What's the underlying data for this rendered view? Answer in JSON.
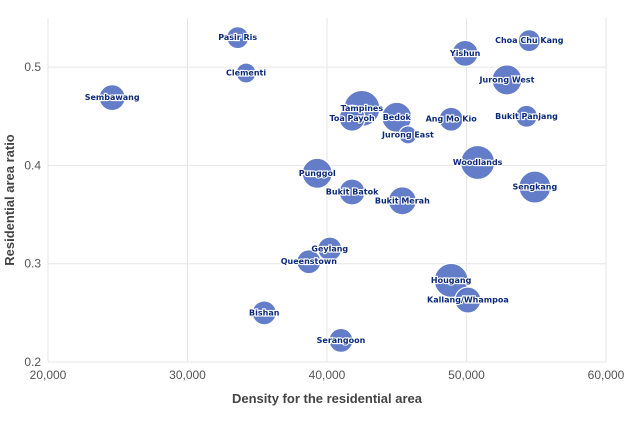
{
  "chart_data": {
    "type": "scatter",
    "xlabel": "Density for the residential area",
    "ylabel": "Residential area ratio",
    "xlim": [
      20000,
      60000
    ],
    "ylim": [
      0.2,
      0.55
    ],
    "grid": true,
    "x_ticks": [
      "20,000",
      "30,000",
      "40,000",
      "50,000",
      "60,000"
    ],
    "x_tick_values": [
      20000,
      30000,
      40000,
      50000,
      60000
    ],
    "y_ticks": [
      "0.2",
      "0.3",
      "0.4",
      "0.5"
    ],
    "y_tick_values": [
      0.2,
      0.3,
      0.4,
      0.5
    ],
    "color": "#5b76c6",
    "label_color": "#0b2a7a",
    "points": [
      {
        "label": "Pasir Ris",
        "x": 33600,
        "y": 0.53,
        "size": 11
      },
      {
        "label": "Clementi",
        "x": 34200,
        "y": 0.494,
        "size": 10
      },
      {
        "label": "Sembawang",
        "x": 24600,
        "y": 0.469,
        "size": 13
      },
      {
        "label": "Yishun",
        "x": 49900,
        "y": 0.514,
        "size": 13
      },
      {
        "label": "Choa Chu Kang",
        "x": 54500,
        "y": 0.527,
        "size": 11
      },
      {
        "label": "Jurong West",
        "x": 52900,
        "y": 0.487,
        "size": 15
      },
      {
        "label": "Tampines",
        "x": 42500,
        "y": 0.458,
        "size": 18
      },
      {
        "label": "Toa Payoh",
        "x": 41800,
        "y": 0.448,
        "size": 13
      },
      {
        "label": "Bedok",
        "x": 45000,
        "y": 0.449,
        "size": 15
      },
      {
        "label": "Ang Mo Kio",
        "x": 48900,
        "y": 0.447,
        "size": 12
      },
      {
        "label": "Bukit Panjang",
        "x": 54300,
        "y": 0.45,
        "size": 11
      },
      {
        "label": "Jurong East",
        "x": 45800,
        "y": 0.431,
        "size": 9
      },
      {
        "label": "Woodlands",
        "x": 50800,
        "y": 0.403,
        "size": 17
      },
      {
        "label": "Punggol",
        "x": 39300,
        "y": 0.392,
        "size": 15
      },
      {
        "label": "Sengkang",
        "x": 54900,
        "y": 0.378,
        "size": 16
      },
      {
        "label": "Bukit Batok",
        "x": 41800,
        "y": 0.373,
        "size": 13
      },
      {
        "label": "Bukit Merah",
        "x": 45400,
        "y": 0.364,
        "size": 14
      },
      {
        "label": "Geylang",
        "x": 40200,
        "y": 0.315,
        "size": 12
      },
      {
        "label": "Queenstown",
        "x": 38700,
        "y": 0.302,
        "size": 12
      },
      {
        "label": "Hougang",
        "x": 48900,
        "y": 0.283,
        "size": 17
      },
      {
        "label": "Kallang/Whampoa",
        "x": 50100,
        "y": 0.263,
        "size": 13
      },
      {
        "label": "Bishan",
        "x": 35500,
        "y": 0.25,
        "size": 12
      },
      {
        "label": "Serangoon",
        "x": 41000,
        "y": 0.222,
        "size": 12
      }
    ]
  }
}
